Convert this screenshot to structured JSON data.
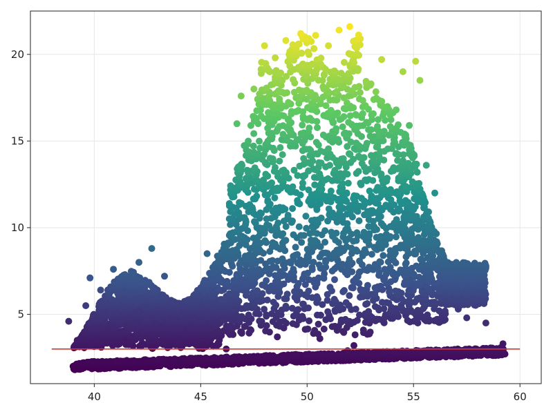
{
  "chart_data": {
    "type": "scatter",
    "title": "",
    "xlabel": "",
    "ylabel": "",
    "xlim": [
      37.0,
      61.0
    ],
    "ylim": [
      1.0,
      22.5
    ],
    "x_ticks": [
      40,
      45,
      50,
      55,
      60
    ],
    "y_ticks": [
      5,
      10,
      15,
      20
    ],
    "x_tick_labels": [
      "40",
      "45",
      "50",
      "55",
      "60"
    ],
    "y_tick_labels": [
      "5",
      "10",
      "15",
      "20"
    ],
    "grid": true,
    "legend": "none",
    "colormap": "viridis",
    "color_by": "y",
    "colormap_stops": [
      "#440154",
      "#3b528b",
      "#21918c",
      "#5ec962",
      "#fde725"
    ],
    "reference_line": {
      "y": 3.0,
      "x_start": 38.0,
      "x_end": 60.0,
      "color": "#e0312a"
    },
    "regions": [
      {
        "name": "low band",
        "x": [
          39.0,
          59.3
        ],
        "y_start": [
          1.95,
          2.8
        ],
        "y_spread": 0.45
      },
      {
        "name": "left lobe",
        "x": [
          38.5,
          43.5
        ],
        "y": [
          3.0,
          8.8
        ]
      },
      {
        "name": "middle shelf",
        "x": [
          43.5,
          48.0
        ],
        "y": [
          3.0,
          8.5
        ]
      },
      {
        "name": "tall cluster",
        "x": [
          46.0,
          53.5
        ],
        "y": [
          3.5,
          21.6
        ]
      },
      {
        "name": "right tail",
        "x": [
          52.0,
          57.0
        ],
        "y": [
          4.0,
          19.6
        ]
      }
    ],
    "sample_points": [
      [
        38.8,
        4.6
      ],
      [
        39.2,
        3.5
      ],
      [
        39.6,
        5.5
      ],
      [
        39.8,
        7.1
      ],
      [
        40.3,
        6.4
      ],
      [
        40.9,
        7.6
      ],
      [
        41.5,
        6.8
      ],
      [
        42.1,
        8.0
      ],
      [
        42.7,
        8.8
      ],
      [
        43.3,
        7.2
      ],
      [
        44.0,
        4.5
      ],
      [
        44.8,
        5.9
      ],
      [
        45.3,
        8.5
      ],
      [
        45.9,
        6.4
      ],
      [
        46.2,
        3.0
      ],
      [
        46.5,
        12.3
      ],
      [
        46.7,
        16.0
      ],
      [
        46.9,
        17.6
      ],
      [
        47.5,
        18.0
      ],
      [
        48.0,
        20.5
      ],
      [
        48.5,
        19.8
      ],
      [
        49.0,
        20.8
      ],
      [
        49.7,
        21.2
      ],
      [
        50.4,
        21.1
      ],
      [
        51.0,
        20.5
      ],
      [
        51.5,
        21.4
      ],
      [
        52.0,
        21.6
      ],
      [
        52.5,
        20.9
      ],
      [
        53.0,
        18.3
      ],
      [
        53.5,
        19.7
      ],
      [
        53.9,
        16.5
      ],
      [
        54.5,
        19.0
      ],
      [
        55.1,
        19.6
      ],
      [
        55.3,
        18.5
      ],
      [
        54.8,
        15.9
      ],
      [
        55.6,
        13.6
      ],
      [
        56.0,
        12.0
      ],
      [
        55.2,
        11.5
      ],
      [
        55.7,
        10.0
      ],
      [
        56.2,
        7.8
      ],
      [
        56.9,
        6.4
      ],
      [
        57.3,
        6.8
      ],
      [
        57.6,
        6.2
      ],
      [
        58.1,
        7.5
      ],
      [
        58.4,
        7.8
      ],
      [
        57.5,
        4.8
      ],
      [
        57.1,
        5.3
      ],
      [
        52.2,
        3.2
      ],
      [
        51.9,
        2.9
      ],
      [
        48.6,
        3.7
      ],
      [
        50.3,
        3.9
      ],
      [
        49.5,
        4.4
      ],
      [
        50.6,
        3.6
      ],
      [
        58.4,
        4.5
      ],
      [
        59.2,
        3.3
      ]
    ]
  }
}
